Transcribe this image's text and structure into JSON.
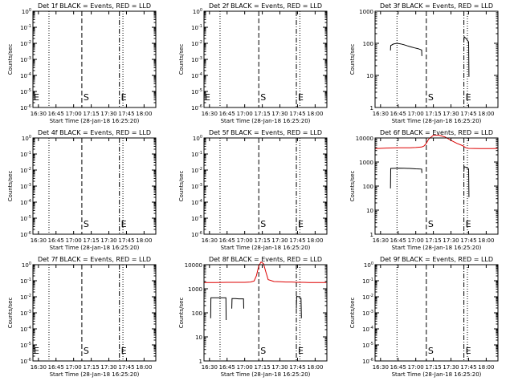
{
  "chart_data": [
    {
      "title": "Det 1f BLACK = Events, RED = LLD",
      "type": "line",
      "xlabel": "Start Time (28-Jan-18 16:25:20)",
      "ylabel": "Counts/sec",
      "x_ticks": [
        "16:30",
        "16:45",
        "17:00",
        "17:15",
        "17:30",
        "17:45",
        "18:00"
      ],
      "y_scale": "log",
      "y_ticks": [
        "10^-6",
        "10^-5",
        "10^-4",
        "10^-3",
        "10^-2",
        "10^-1",
        "10^0"
      ],
      "y_tick_values": [
        -6,
        -5,
        -4,
        -3,
        -2,
        -1,
        0
      ],
      "markers": [
        {
          "label": "S",
          "x": "17:07",
          "style": "dashed"
        },
        {
          "label": "E",
          "x": "17:39",
          "style": "dashdot"
        }
      ],
      "side_label": "E",
      "dotted_lines": [
        "16:39",
        "17:42"
      ],
      "series": []
    },
    {
      "title": "Det 2f BLACK = Events, RED = LLD",
      "type": "line",
      "xlabel": "Start Time (28-Jan-18 16:25:20)",
      "ylabel": "Counts/sec",
      "x_ticks": [
        "16:30",
        "16:45",
        "17:00",
        "17:15",
        "17:30",
        "17:45",
        "18:00"
      ],
      "y_scale": "log",
      "y_ticks": [
        "10^-6",
        "10^-5",
        "10^-4",
        "10^-3",
        "10^-2",
        "10^-1",
        "10^0"
      ],
      "y_tick_values": [
        -6,
        -5,
        -4,
        -3,
        -2,
        -1,
        0
      ],
      "markers": [
        {
          "label": "S",
          "x": "17:12",
          "style": "dashed"
        },
        {
          "label": "E",
          "x": "17:44",
          "style": "dashdot"
        }
      ],
      "side_label": "E",
      "dotted_lines": [
        "16:39",
        "17:47"
      ],
      "series": []
    },
    {
      "title": "Det 3f BLACK = Events, RED = LLD",
      "type": "line",
      "xlabel": "Start Time (28-Jan-18 16:25:20)",
      "ylabel": "Counts/sec",
      "x_ticks": [
        "16:30",
        "16:45",
        "17:00",
        "17:15",
        "17:30",
        "17:45",
        "18:00"
      ],
      "y_scale": "log",
      "y_ticks": [
        "1000",
        "100",
        "10",
        "1"
      ],
      "y_tick_values": [
        3,
        2,
        1,
        0
      ],
      "markers": [
        {
          "label": "S",
          "x": "17:09",
          "style": "dashed"
        },
        {
          "label": "E",
          "x": "17:41",
          "style": "dashdot"
        }
      ],
      "dotted_lines": [
        "16:44",
        "17:44"
      ],
      "series": [
        {
          "color": "#000000",
          "segments": [
            {
              "x": [
                "16:38.5",
                "16:38.7",
                "16:41",
                "16:44",
                "16:47",
                "16:50",
                "16:53",
                "16:56",
                "16:59",
                "17:02",
                "17:05",
                "17:05.2"
              ],
              "y": [
                60,
                85,
                95,
                100,
                96,
                90,
                83,
                77,
                72,
                68,
                62,
                40
              ]
            },
            {
              "x": [
                "17:41",
                "17:41.3",
                "17:43",
                "17:45",
                "17:45.3"
              ],
              "y": [
                125,
                160,
                140,
                110,
                9
              ]
            }
          ]
        }
      ]
    },
    {
      "title": "Det 4f BLACK = Events, RED = LLD",
      "type": "line",
      "xlabel": "Start Time (28-Jan-18 16:25:20)",
      "ylabel": "Counts/sec",
      "x_ticks": [
        "16:30",
        "16:45",
        "17:00",
        "17:15",
        "17:30",
        "17:45",
        "18:00"
      ],
      "y_scale": "log",
      "y_ticks": [
        "10^-6",
        "10^-5",
        "10^-4",
        "10^-3",
        "10^-2",
        "10^-1",
        "10^0"
      ],
      "y_tick_values": [
        -6,
        -5,
        -4,
        -3,
        -2,
        -1,
        0
      ],
      "markers": [
        {
          "label": "S",
          "x": "17:07",
          "style": "dashed"
        },
        {
          "label": "E",
          "x": "17:39",
          "style": "dashdot"
        }
      ],
      "dotted_lines": [
        "16:39",
        "17:42"
      ],
      "series": []
    },
    {
      "title": "Det 5f BLACK = Events, RED = LLD",
      "type": "line",
      "xlabel": "Start Time (28-Jan-18 16:25:20)",
      "ylabel": "Counts/sec",
      "x_ticks": [
        "16:30",
        "16:45",
        "17:00",
        "17:15",
        "17:30",
        "17:45",
        "18:00"
      ],
      "y_scale": "log",
      "y_ticks": [
        "10^-6",
        "10^-5",
        "10^-4",
        "10^-3",
        "10^-2",
        "10^-1",
        "10^0"
      ],
      "y_tick_values": [
        -6,
        -5,
        -4,
        -3,
        -2,
        -1,
        0
      ],
      "markers": [
        {
          "label": "S",
          "x": "17:12",
          "style": "dashed"
        },
        {
          "label": "E",
          "x": "17:44",
          "style": "dashdot"
        }
      ],
      "dotted_lines": [
        "16:39",
        "17:47"
      ],
      "series": []
    },
    {
      "title": "Det 6f BLACK = Events, RED = LLD",
      "type": "line",
      "xlabel": "Start Time (28-Jan-18 16:25:20)",
      "ylabel": "Counts/sec",
      "x_ticks": [
        "16:30",
        "16:45",
        "17:00",
        "17:15",
        "17:30",
        "17:45",
        "18:00"
      ],
      "y_scale": "log",
      "y_ticks": [
        "10000",
        "1000",
        "100",
        "10",
        "1"
      ],
      "y_tick_values": [
        4,
        3,
        2,
        1,
        0
      ],
      "markers": [
        {
          "label": "S",
          "x": "17:09",
          "style": "dashed"
        },
        {
          "label": "E",
          "x": "17:41",
          "style": "dashdot"
        }
      ],
      "dotted_lines": [
        "16:44",
        "17:44"
      ],
      "series": [
        {
          "color": "#dd0000",
          "segments": [
            {
              "x": [
                "16:25.3",
                "16:35",
                "16:45",
                "16:55",
                "17:00",
                "17:05",
                "17:07",
                "17:09",
                "17:11",
                "17:15",
                "17:20",
                "17:25",
                "17:30",
                "17:35",
                "17:40",
                "17:41",
                "17:42",
                "17:43",
                "17:45",
                "17:50",
                "17:55",
                "18:00",
                "18:05",
                "18:09.5"
              ],
              "y": [
                3600,
                3800,
                3900,
                3900,
                4000,
                4200,
                4600,
                6000,
                9000,
                13000,
                13000,
                11000,
                8000,
                6000,
                4800,
                4400,
                4100,
                3900,
                3700,
                3650,
                3600,
                3600,
                3600,
                3650
              ]
            }
          ]
        },
        {
          "color": "#000000",
          "segments": [
            {
              "x": [
                "16:38.5",
                "16:38.7",
                "16:45",
                "16:50",
                "16:55",
                "17:00",
                "17:05",
                "17:05.2"
              ],
              "y": [
                80,
                540,
                560,
                550,
                540,
                520,
                510,
                350
              ]
            },
            {
              "x": [
                "17:41",
                "17:41.3",
                "17:43",
                "17:45",
                "17:45.3"
              ],
              "y": [
                400,
                640,
                600,
                520,
                35
              ]
            }
          ]
        }
      ]
    },
    {
      "title": "Det 7f BLACK = Events, RED = LLD",
      "type": "line",
      "xlabel": "Start Time (28-Jan-18 16:25:20)",
      "ylabel": "Counts/sec",
      "x_ticks": [
        "16:30",
        "16:45",
        "17:00",
        "17:15",
        "17:30",
        "17:45",
        "18:00"
      ],
      "y_scale": "log",
      "y_ticks": [
        "10^-6",
        "10^-5",
        "10^-4",
        "10^-3",
        "10^-2",
        "10^-1",
        "10^0"
      ],
      "y_tick_values": [
        -6,
        -5,
        -4,
        -3,
        -2,
        -1,
        0
      ],
      "markers": [
        {
          "label": "S",
          "x": "17:07",
          "style": "dashed"
        },
        {
          "label": "E",
          "x": "17:39",
          "style": "dashdot"
        }
      ],
      "side_label": "E",
      "dotted_lines": [
        "16:39",
        "17:42"
      ],
      "series": []
    },
    {
      "title": "Det 8f BLACK = Events, RED = LLD",
      "type": "line",
      "xlabel": "Start Time (28-Jan-18 16:25:20)",
      "ylabel": "Counts/sec",
      "x_ticks": [
        "16:30",
        "16:45",
        "17:00",
        "17:15",
        "17:30",
        "17:45",
        "18:00"
      ],
      "y_scale": "log",
      "y_ticks": [
        "10000",
        "1000",
        "100",
        "10",
        "1"
      ],
      "y_tick_values": [
        4,
        3,
        2,
        1,
        0
      ],
      "markers": [
        {
          "label": "S",
          "x": "17:12",
          "style": "dashed"
        },
        {
          "label": "E",
          "x": "17:44",
          "style": "dashdot"
        }
      ],
      "dotted_lines": [
        "16:39",
        "17:47"
      ],
      "series": [
        {
          "color": "#dd0000",
          "segments": [
            {
              "x": [
                "16:25.3",
                "16:35",
                "16:45",
                "16:55",
                "17:00",
                "17:05",
                "17:08",
                "17:10",
                "17:12",
                "17:14",
                "17:16",
                "17:18",
                "17:20",
                "17:25",
                "17:30",
                "17:35",
                "17:40",
                "17:45",
                "17:50",
                "17:55",
                "18:00",
                "18:05",
                "18:09.5"
              ],
              "y": [
                1800,
                1800,
                1850,
                1850,
                1850,
                1900,
                2100,
                3500,
                9000,
                13000,
                11000,
                5000,
                2400,
                2000,
                1950,
                1900,
                1900,
                1850,
                1850,
                1800,
                1800,
                1800,
                1800
              ]
            }
          ]
        },
        {
          "color": "#000000",
          "segments": [
            {
              "x": [
                "16:31",
                "16:31.2",
                "16:35",
                "16:40",
                "16:44",
                "16:44.2"
              ],
              "y": [
                60,
                420,
                420,
                420,
                420,
                50
              ]
            },
            {
              "x": [
                "16:49",
                "16:49.2",
                "16:52",
                "16:55",
                "16:59",
                "16:59.2"
              ],
              "y": [
                150,
                390,
                390,
                380,
                380,
                150
              ]
            },
            {
              "x": [
                "17:44",
                "17:44.3",
                "17:46",
                "17:48",
                "17:48.3"
              ],
              "y": [
                150,
                480,
                470,
                400,
                60
              ]
            }
          ]
        }
      ]
    },
    {
      "title": "Det 9f BLACK = Events, RED = LLD",
      "type": "line",
      "xlabel": "Start Time (28-Jan-18 16:25:20)",
      "ylabel": "Counts/sec",
      "x_ticks": [
        "16:30",
        "16:45",
        "17:00",
        "17:15",
        "17:30",
        "17:45",
        "18:00"
      ],
      "y_scale": "log",
      "y_ticks": [
        "10^-6",
        "10^-5",
        "10^-4",
        "10^-3",
        "10^-2",
        "10^-1",
        "10^0"
      ],
      "y_tick_values": [
        -6,
        -5,
        -4,
        -3,
        -2,
        -1,
        0
      ],
      "markers": [
        {
          "label": "S",
          "x": "17:09",
          "style": "dashed"
        },
        {
          "label": "E",
          "x": "17:41",
          "style": "dashdot"
        }
      ],
      "dotted_lines": [
        "16:44",
        "17:44"
      ],
      "series": []
    }
  ]
}
